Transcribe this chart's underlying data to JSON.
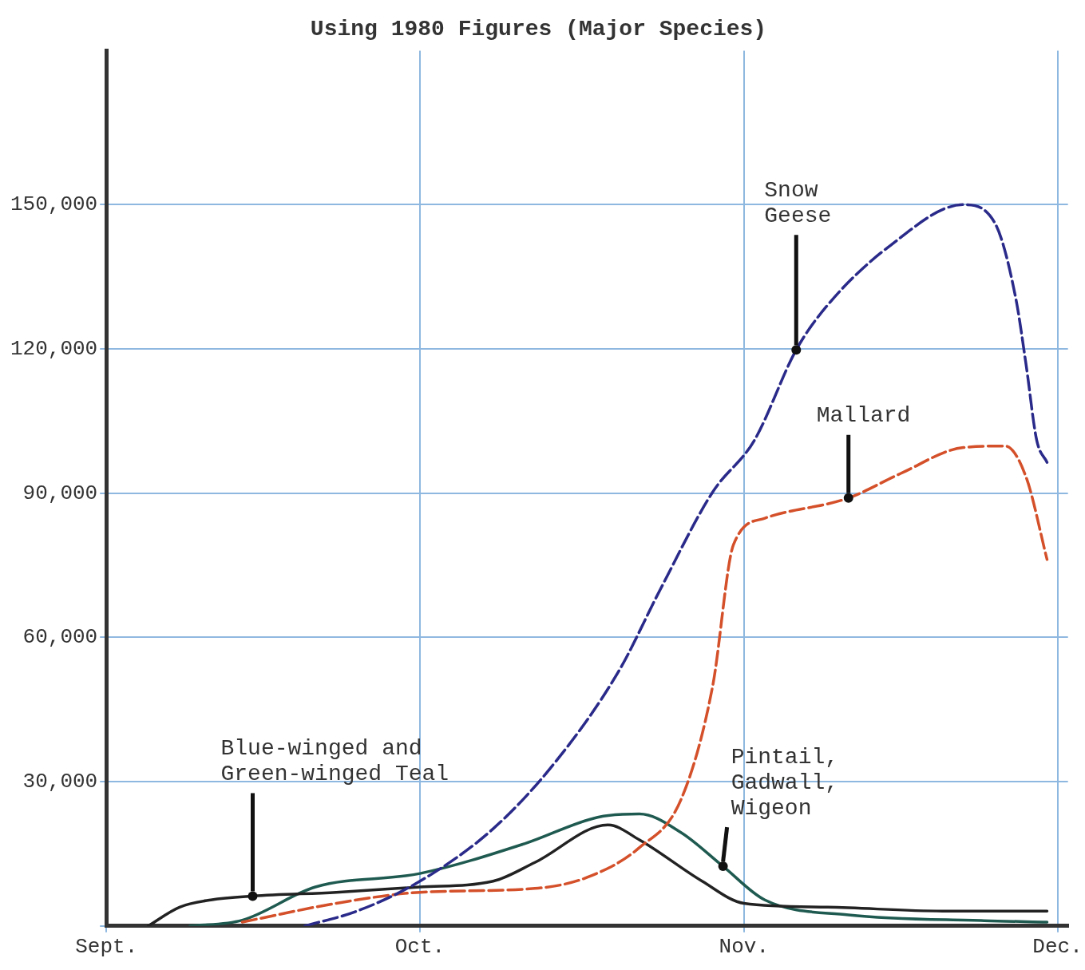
{
  "chart_data": {
    "type": "line",
    "title": "Using 1980 Figures (Major Species)",
    "xlim": [
      "--09-01",
      "--12-02"
    ],
    "xticks": [
      {
        "value": "--09-01",
        "label": "Sept."
      },
      {
        "value": "--10-01",
        "label": "Oct."
      },
      {
        "value": "--11-01",
        "label": "Nov."
      },
      {
        "value": "--12-01",
        "label": "Dec."
      }
    ],
    "ylim": [
      0,
      182000
    ],
    "yticks": [
      {
        "value": 0,
        "label": null
      },
      {
        "value": 30000,
        "label": "30,000"
      },
      {
        "value": 60000,
        "label": "60,000"
      },
      {
        "value": 90000,
        "label": "90,000"
      },
      {
        "value": 120000,
        "label": "120,000"
      },
      {
        "value": 150000,
        "label": "150,000"
      }
    ],
    "grid": true,
    "legend": false,
    "marker": "none",
    "series": [
      {
        "name": "Snow Geese",
        "color": "#2a2a8a",
        "line_style": "dashed",
        "x": [
          "--09-20",
          "--09-25",
          "--10-01",
          "--10-08",
          "--10-14",
          "--10-20",
          "--10-24",
          "--10-29",
          "--11-02",
          "--11-06",
          "--11-09",
          "--11-15",
          "--11-22",
          "--11-25",
          "--11-27",
          "--11-28",
          "--11-29",
          "--11-30"
        ],
        "values": [
          0,
          3100,
          9300,
          20200,
          34200,
          52900,
          70000,
          90200,
          101000,
          119800,
          129100,
          141500,
          150000,
          146200,
          130600,
          116600,
          101100,
          96400
        ]
      },
      {
        "name": "Mallard",
        "color": "#d4502a",
        "line_style": "dashed",
        "x": [
          "--09-14",
          "--09-23",
          "--10-01",
          "--10-12",
          "--10-17",
          "--10-22",
          "--10-26",
          "--10-29",
          "--10-31",
          "--11-03",
          "--11-11",
          "--11-16",
          "--11-22",
          "--11-26",
          "--11-28",
          "--11-30"
        ],
        "values": [
          800,
          4700,
          7000,
          7800,
          10100,
          16300,
          26400,
          49800,
          79300,
          84800,
          89000,
          94100,
          99500,
          99800,
          93300,
          76200
        ]
      },
      {
        "name": "Blue-winged and Green-winged Teal",
        "color": "#222222",
        "line_style": "solid",
        "x": [
          "--09-05",
          "--09-08",
          "--09-11",
          "--09-15",
          "--09-23",
          "--10-01",
          "--10-08",
          "--10-12",
          "--10-19",
          "--10-22",
          "--10-28",
          "--11-01",
          "--11-09",
          "--11-20",
          "--11-30"
        ],
        "values": [
          0,
          3900,
          5400,
          6200,
          7000,
          8100,
          9300,
          13200,
          21000,
          17900,
          9300,
          4700,
          3900,
          3100,
          3100
        ]
      },
      {
        "name": "Pintail, Gadwall, Wigeon",
        "color": "#1f5a50",
        "line_style": "solid",
        "x": [
          "--09-09",
          "--09-14",
          "--09-21",
          "--10-01",
          "--10-11",
          "--10-18",
          "--10-22",
          "--10-26",
          "--10-30",
          "--11-03",
          "--11-11",
          "--11-24",
          "--11-30"
        ],
        "values": [
          0,
          1200,
          8100,
          10900,
          17100,
          22600,
          23300,
          19400,
          12400,
          5400,
          2300,
          1100,
          800
        ]
      }
    ]
  }
}
